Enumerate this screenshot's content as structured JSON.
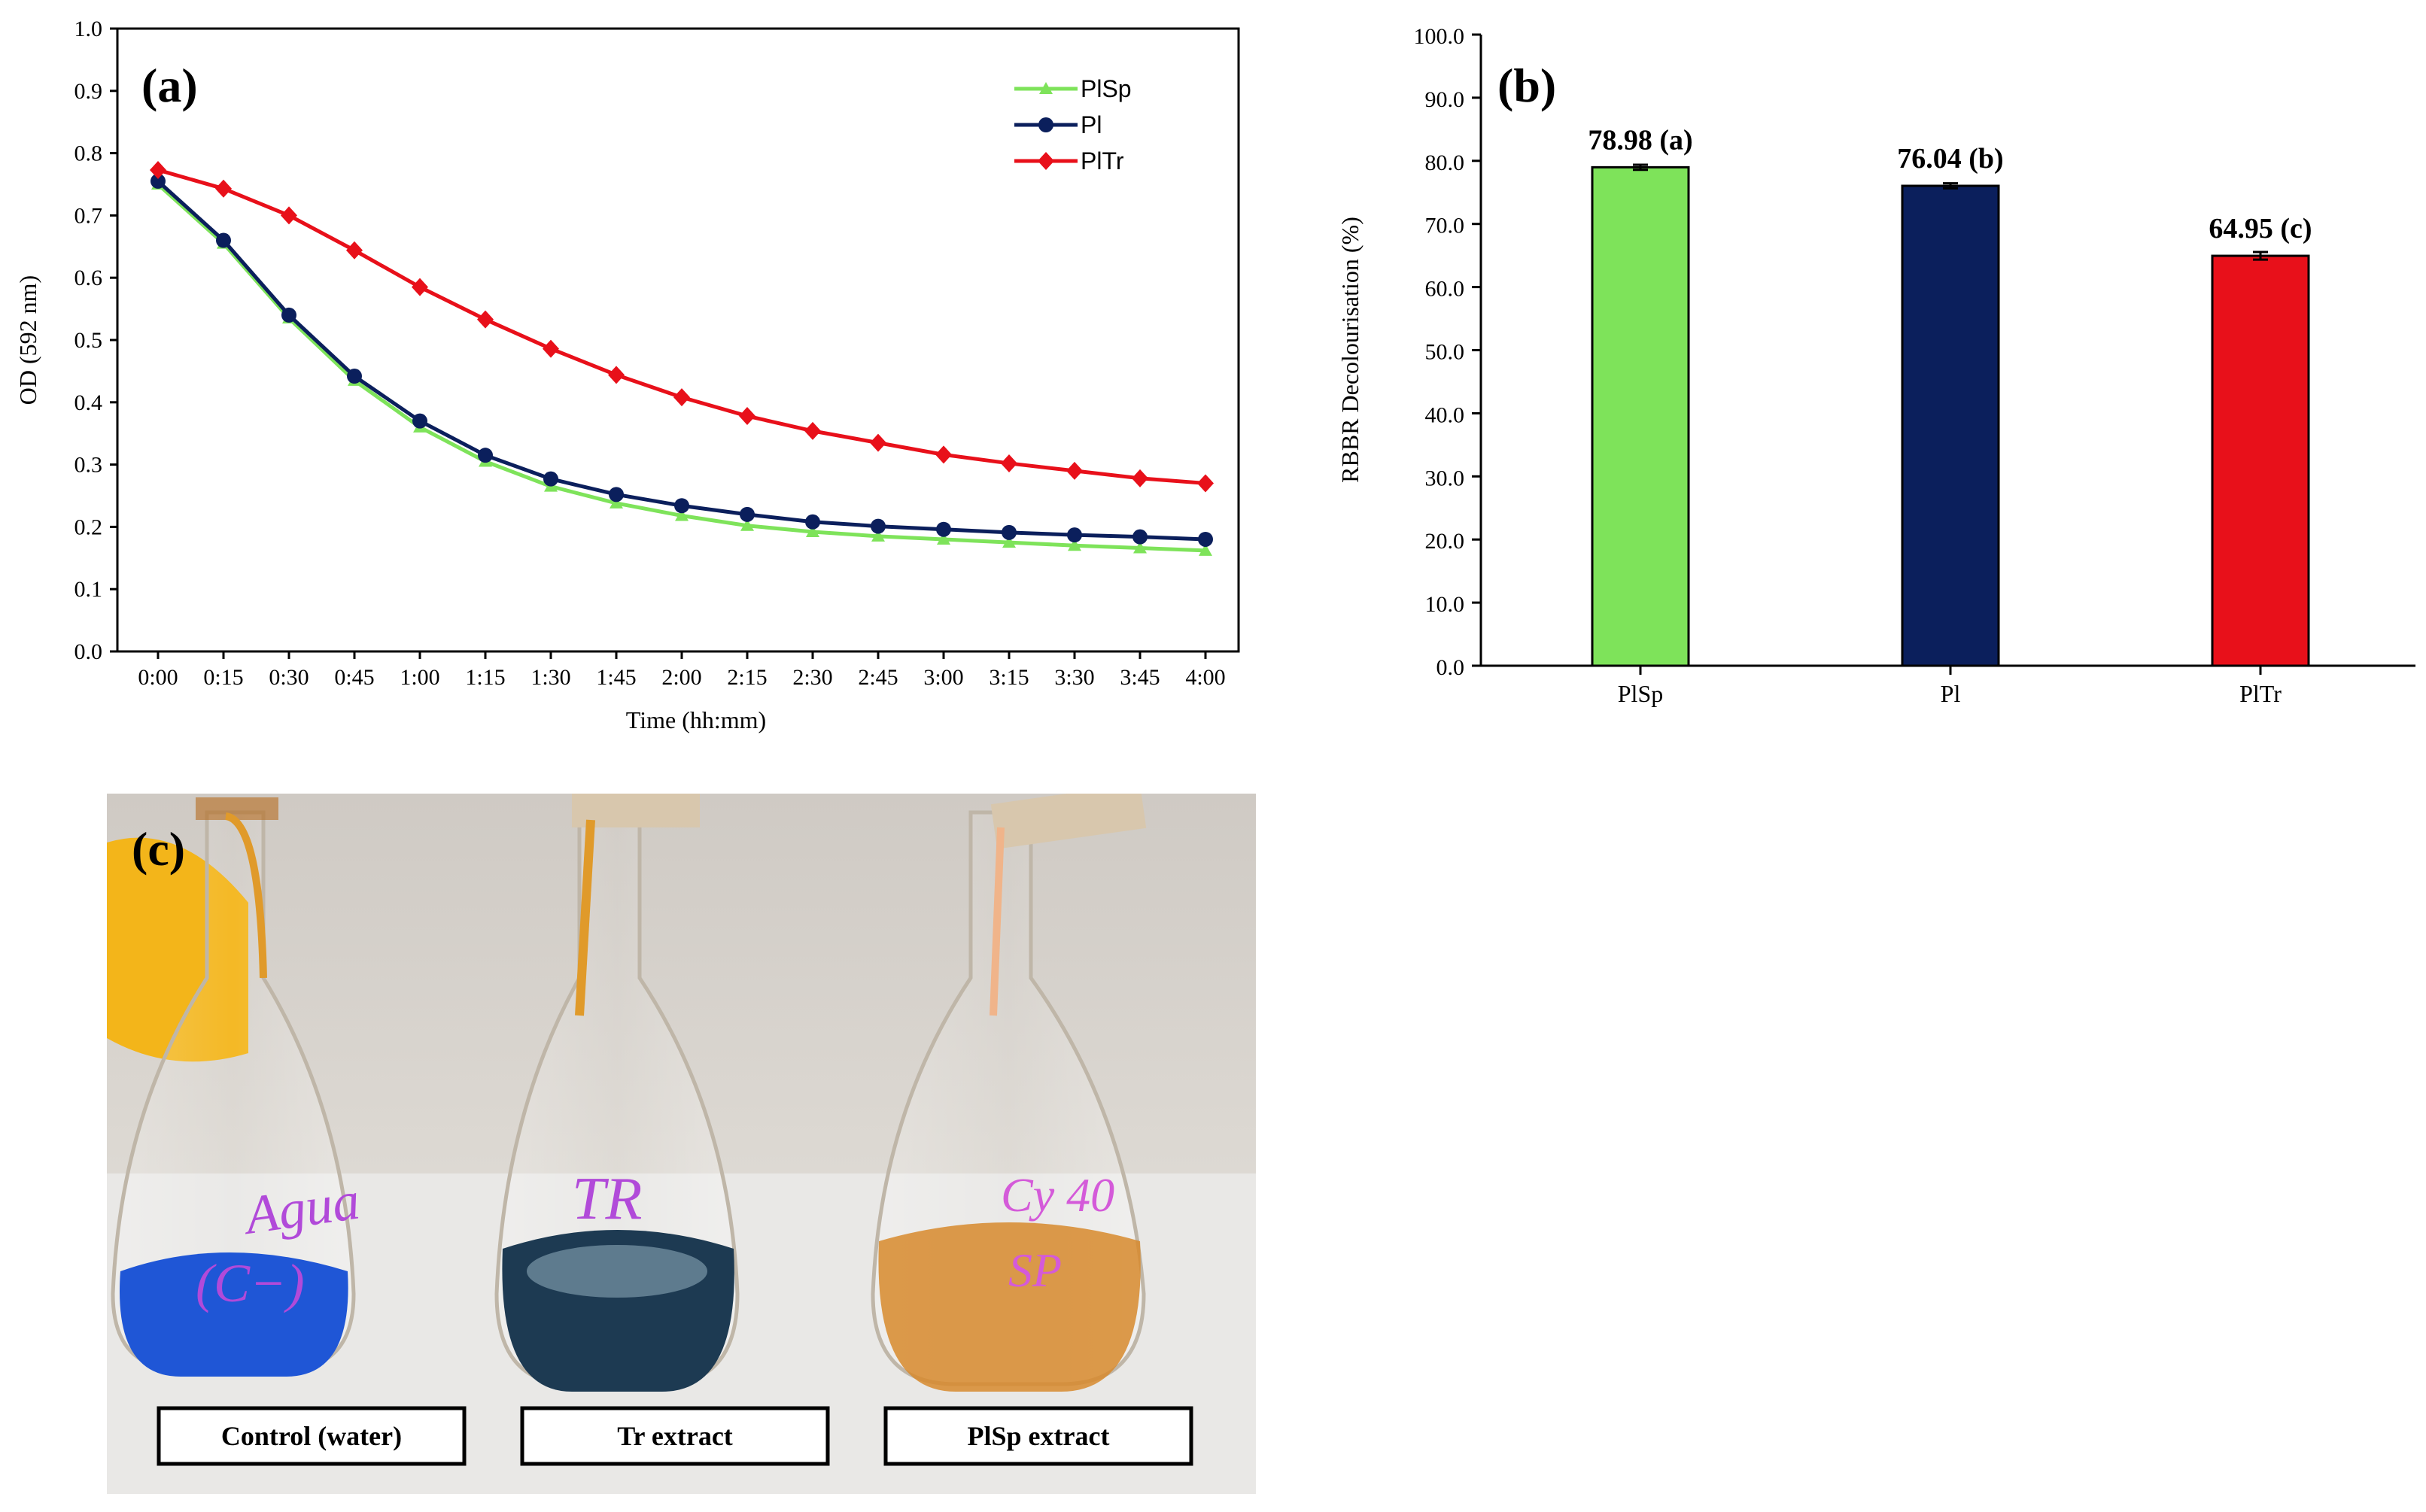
{
  "chart_data": [
    {
      "type": "line",
      "panel_label": "(a)",
      "xlabel": "Time (hh:mm)",
      "ylabel": "OD (592 nm)",
      "ylim": [
        0,
        1
      ],
      "y_ticks": [
        "0.0",
        "0.1",
        "0.2",
        "0.3",
        "0.4",
        "0.5",
        "0.6",
        "0.7",
        "0.8",
        "0.9",
        "1.0"
      ],
      "x": [
        "0:00",
        "0:15",
        "0:30",
        "0:45",
        "1:00",
        "1:15",
        "1:30",
        "1:45",
        "2:00",
        "2:15",
        "2:30",
        "2:45",
        "3:00",
        "3:15",
        "3:30",
        "3:45",
        "4:00"
      ],
      "legend_position": "top-right",
      "series": [
        {
          "name": "PlSp",
          "color": "#7ee35a",
          "marker": "triangle",
          "values": [
            0.75,
            0.655,
            0.535,
            0.435,
            0.36,
            0.305,
            0.265,
            0.238,
            0.218,
            0.202,
            0.192,
            0.185,
            0.18,
            0.175,
            0.17,
            0.166,
            0.162
          ]
        },
        {
          "name": "Pl",
          "color": "#0b1f5c",
          "marker": "circle",
          "values": [
            0.755,
            0.66,
            0.54,
            0.442,
            0.37,
            0.315,
            0.277,
            0.252,
            0.234,
            0.22,
            0.208,
            0.201,
            0.196,
            0.191,
            0.187,
            0.184,
            0.18
          ]
        },
        {
          "name": "PlTr",
          "color": "#e8101a",
          "marker": "diamond",
          "values": [
            0.773,
            0.743,
            0.7,
            0.644,
            0.585,
            0.533,
            0.486,
            0.444,
            0.408,
            0.378,
            0.354,
            0.335,
            0.316,
            0.302,
            0.29,
            0.278,
            0.27
          ]
        }
      ]
    },
    {
      "type": "bar",
      "panel_label": "(b)",
      "ylabel": "RBBR Decolourisation (%)",
      "ylim": [
        0,
        100
      ],
      "y_ticks": [
        "0.0",
        "10.0",
        "20.0",
        "30.0",
        "40.0",
        "50.0",
        "60.0",
        "70.0",
        "80.0",
        "90.0",
        "100.0"
      ],
      "categories": [
        "PlSp",
        "Pl",
        "PlTr"
      ],
      "values": [
        78.98,
        76.04,
        64.95
      ],
      "errors": [
        0.4,
        0.4,
        0.6
      ],
      "labels": [
        "78.98 (a)",
        "76.04 (b)",
        "64.95 (c)"
      ],
      "colors": [
        "#7ee35a",
        "#0b1f5c",
        "#e8101a"
      ]
    }
  ],
  "photo": {
    "panel_label": "(c)",
    "labels": [
      "Control (water)",
      "Tr extract",
      "PlSp extract"
    ],
    "flask_liquid_colors": [
      "#1f56d6",
      "#1d3a52",
      "#d7892d"
    ]
  },
  "colors": {
    "axis": "#000000",
    "background": "#ffffff"
  }
}
